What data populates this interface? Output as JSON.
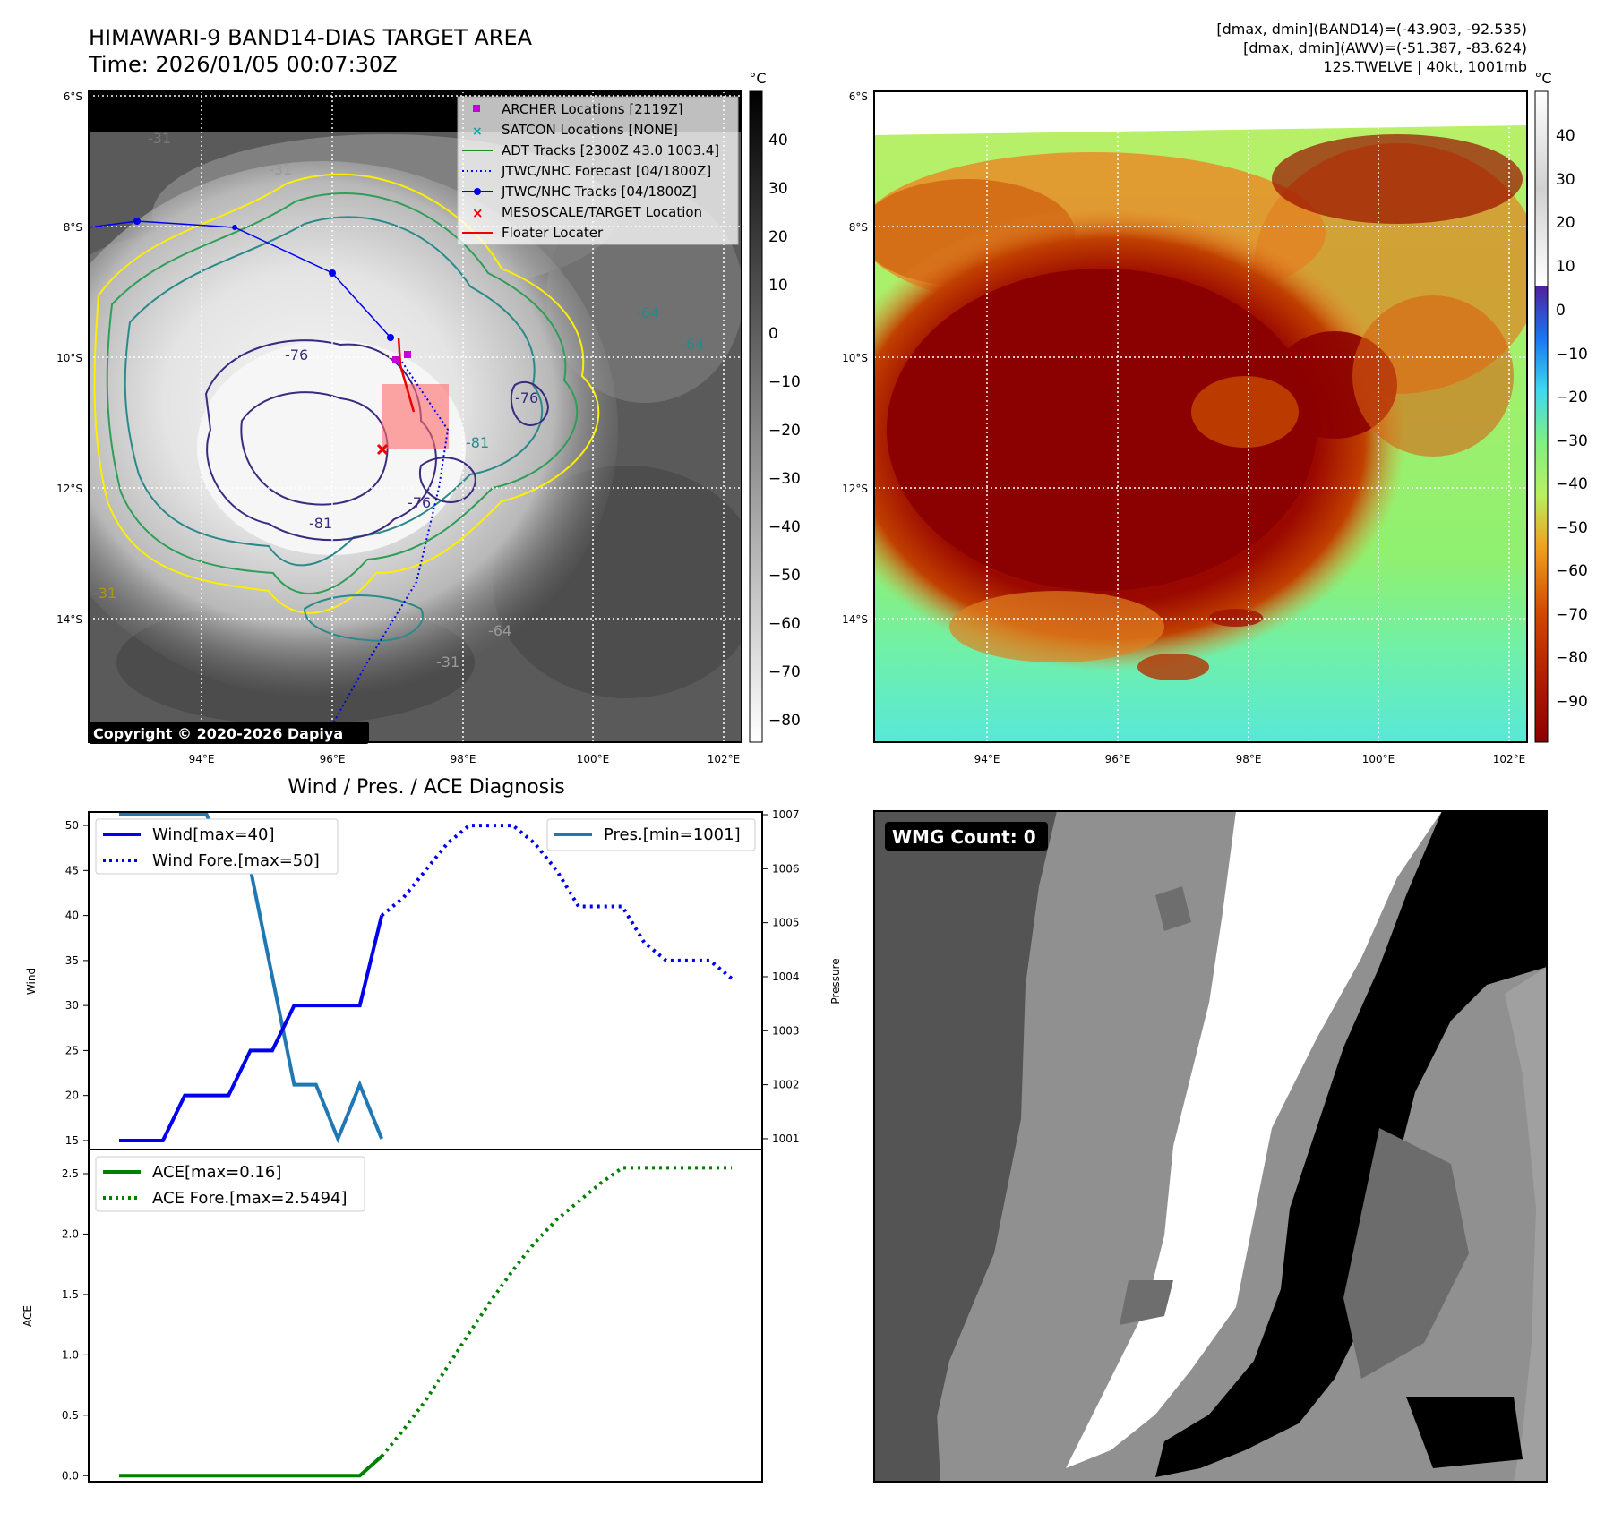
{
  "colors": {
    "track_wind": "#0000ee",
    "pressure": "#1f77b4",
    "ace": "#008000",
    "archer": "#cc00cc",
    "satcon": "#00aaaa",
    "adt": "#228b22",
    "forecast": "#0000ee",
    "jtwc": "#0000ee",
    "target": "#ee0000",
    "floater": "#ee0000"
  },
  "header": {
    "title_line1": "HIMAWARI-9 BAND14-DIAS TARGET AREA",
    "title_line2": "Time: 2026/01/05 00:07:30Z",
    "info_line1": "[dmax, dmin](BAND14)=(-43.903, -92.535)",
    "info_line2": "[dmax, dmin](AWV)=(-51.387, -83.624)",
    "info_line3": "12S.TWELVE | 40kt, 1001mb"
  },
  "map_panel": {
    "lat_labels": [
      "6°S",
      "8°S",
      "10°S",
      "12°S",
      "14°S"
    ],
    "lon_labels": [
      "94°E",
      "96°E",
      "98°E",
      "100°E",
      "102°E"
    ],
    "colorbar_unit": "°C",
    "colorbar_ticks": [
      "40",
      "30",
      "20",
      "10",
      "0",
      "−10",
      "−20",
      "−30",
      "−40",
      "−50",
      "−60",
      "−70",
      "−80"
    ],
    "contour_labels": [
      "-31",
      "-31",
      "-76",
      "-64",
      "-64",
      "-76",
      "-81",
      "-76",
      "-81",
      "-31",
      "-31",
      "-64"
    ],
    "legend": [
      {
        "name": "archer",
        "label": "ARCHER Locations [2119Z]"
      },
      {
        "name": "satcon",
        "label": "SATCON Locations [NONE]"
      },
      {
        "name": "adt",
        "label": "ADT Tracks [2300Z 43.0 1003.4]"
      },
      {
        "name": "forecast",
        "label": "JTWC/NHC Forecast [04/1800Z]"
      },
      {
        "name": "jtwc",
        "label": "JTWC/NHC Tracks [04/1800Z]"
      },
      {
        "name": "target",
        "label": "MESOSCALE/TARGET Location"
      },
      {
        "name": "floater",
        "label": "Floater Locater"
      }
    ],
    "copyright": "Copyright © 2020-2026 Dapiya"
  },
  "awv_panel": {
    "lat_labels": [
      "6°S",
      "8°S",
      "10°S",
      "12°S",
      "14°S"
    ],
    "lon_labels": [
      "94°E",
      "96°E",
      "98°E",
      "100°E",
      "102°E"
    ],
    "colorbar_unit": "°C",
    "colorbar_ticks": [
      "40",
      "30",
      "20",
      "10",
      "0",
      "−10",
      "−20",
      "−30",
      "−40",
      "−50",
      "−60",
      "−70",
      "−80",
      "−90"
    ]
  },
  "wmg_panel": {
    "badge": "WMG Count: 0"
  },
  "chart_data": [
    {
      "type": "line",
      "title": "Wind / Pres. / ACE Diagnosis",
      "xlabel": "",
      "ylabel": "Wind",
      "ylim": [
        14,
        51.5
      ],
      "yticks": [
        "15",
        "20",
        "25",
        "30",
        "35",
        "40",
        "45",
        "50"
      ],
      "legend": "upper-left",
      "series": [
        {
          "name": "Wind[max=40]",
          "style": "solid",
          "x": [
            0,
            1,
            2,
            3,
            4,
            5,
            6,
            7,
            8,
            9,
            10,
            11,
            12
          ],
          "values": [
            15,
            15,
            15,
            20,
            20,
            20,
            25,
            25,
            30,
            30,
            30,
            30,
            40
          ]
        },
        {
          "name": "Wind Fore.[max=50]",
          "style": "dotted",
          "x": [
            12,
            13,
            14,
            15,
            16,
            17,
            18,
            19,
            20,
            21,
            22,
            23,
            24,
            25,
            26,
            27,
            28
          ],
          "values": [
            40,
            42,
            45,
            48,
            50,
            50,
            50,
            48,
            45,
            41,
            41,
            41,
            37,
            35,
            35,
            35,
            33
          ]
        }
      ],
      "secondary_axis": {
        "ylabel": "Pressure",
        "ylim": [
          1000.8,
          1007.05
        ],
        "yticks": [
          "1001",
          "1002",
          "1003",
          "1004",
          "1005",
          "1006",
          "1007"
        ],
        "legend": "upper-right",
        "series": [
          {
            "name": "Pres.[min=1001]",
            "style": "solid",
            "x": [
              0,
              1,
              2,
              3,
              4,
              5,
              6,
              7,
              8,
              9,
              10,
              11,
              12
            ],
            "values": [
              1007,
              1007,
              1007,
              1007,
              1007,
              1006,
              1006,
              1004,
              1002,
              1002,
              1001,
              1002,
              1001
            ]
          }
        ]
      }
    },
    {
      "type": "line",
      "xlabel": "",
      "ylabel": "ACE",
      "ylim": [
        -0.05,
        2.7
      ],
      "yticks": [
        "0.0",
        "0.5",
        "1.0",
        "1.5",
        "2.0",
        "2.5"
      ],
      "legend": "upper-left",
      "series": [
        {
          "name": "ACE[max=0.16]",
          "style": "solid",
          "x": [
            0,
            1,
            2,
            3,
            4,
            5,
            6,
            7,
            8,
            9,
            10,
            11,
            12
          ],
          "values": [
            0,
            0,
            0,
            0,
            0,
            0,
            0,
            0,
            0,
            0,
            0,
            0,
            0.16
          ]
        },
        {
          "name": "ACE Fore.[max=2.5494]",
          "style": "dotted",
          "x": [
            12,
            13,
            14,
            15,
            16,
            17,
            18,
            19,
            20,
            21,
            22,
            23,
            24,
            25,
            26,
            27,
            28
          ],
          "values": [
            0.16,
            0.38,
            0.62,
            0.9,
            1.18,
            1.45,
            1.7,
            1.93,
            2.12,
            2.27,
            2.42,
            2.549,
            2.549,
            2.549,
            2.549,
            2.549,
            2.549
          ]
        }
      ]
    }
  ]
}
